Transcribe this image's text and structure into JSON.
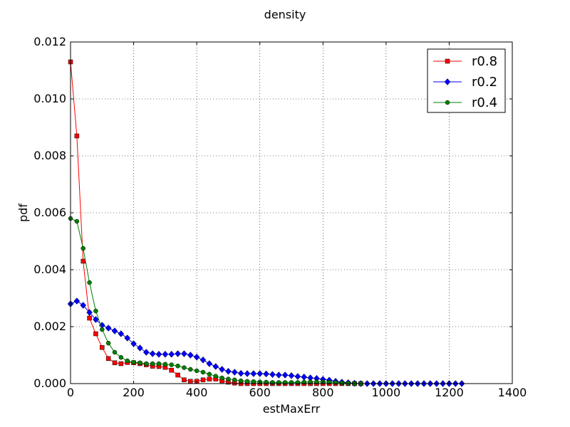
{
  "chart_data": {
    "type": "line",
    "title": "density",
    "xlabel": "estMaxErr",
    "ylabel": "pdf",
    "xlim": [
      0,
      1400
    ],
    "ylim": [
      0,
      0.012
    ],
    "x_ticks": [
      "0",
      "200",
      "400",
      "600",
      "800",
      "1000",
      "1200",
      "1400"
    ],
    "y_ticks": [
      "0.000",
      "0.002",
      "0.004",
      "0.006",
      "0.008",
      "0.010",
      "0.012"
    ],
    "grid": true,
    "legend_position": "top-right",
    "series": [
      {
        "name": "r0.8",
        "color": "#ff0000",
        "marker": "square",
        "points": [
          [
            0,
            0.0113
          ],
          [
            20,
            0.0087
          ],
          [
            40,
            0.0043
          ],
          [
            60,
            0.0023
          ],
          [
            80,
            0.00175
          ],
          [
            100,
            0.00127
          ],
          [
            120,
            0.00088
          ],
          [
            140,
            0.00073
          ],
          [
            160,
            0.0007
          ],
          [
            180,
            0.00074
          ],
          [
            200,
            0.00073
          ],
          [
            220,
            0.0007
          ],
          [
            240,
            0.00066
          ],
          [
            260,
            0.00061
          ],
          [
            280,
            0.0006
          ],
          [
            300,
            0.00057
          ],
          [
            320,
            0.00047
          ],
          [
            340,
            0.0003
          ],
          [
            360,
            0.00013
          ],
          [
            380,
            8e-05
          ],
          [
            400,
            8e-05
          ],
          [
            420,
            0.00013
          ],
          [
            440,
            0.00016
          ],
          [
            460,
            0.00016
          ],
          [
            480,
            0.0001
          ],
          [
            500,
            5e-05
          ],
          [
            520,
            2e-05
          ],
          [
            540,
            0.0
          ],
          [
            560,
            0.0
          ],
          [
            580,
            0.0
          ],
          [
            600,
            0.0
          ],
          [
            620,
            0.0
          ],
          [
            640,
            0.0
          ],
          [
            660,
            0.0
          ],
          [
            680,
            0.0
          ],
          [
            700,
            0.0
          ],
          [
            720,
            0.0
          ],
          [
            740,
            0.0
          ],
          [
            760,
            0.0
          ],
          [
            780,
            0.0
          ],
          [
            800,
            0.0
          ],
          [
            820,
            0.0
          ],
          [
            840,
            0.0
          ],
          [
            860,
            0.0
          ],
          [
            880,
            0.0
          ],
          [
            900,
            0.0
          ],
          [
            920,
            0.0
          ]
        ]
      },
      {
        "name": "r0.2",
        "color": "#0000ff",
        "marker": "diamond",
        "points": [
          [
            0,
            0.0028
          ],
          [
            20,
            0.0029
          ],
          [
            40,
            0.00275
          ],
          [
            60,
            0.0025
          ],
          [
            80,
            0.00225
          ],
          [
            100,
            0.00205
          ],
          [
            120,
            0.00195
          ],
          [
            140,
            0.00185
          ],
          [
            160,
            0.00175
          ],
          [
            180,
            0.0016
          ],
          [
            200,
            0.0014
          ],
          [
            220,
            0.00125
          ],
          [
            240,
            0.0011
          ],
          [
            260,
            0.00105
          ],
          [
            280,
            0.00103
          ],
          [
            300,
            0.00103
          ],
          [
            320,
            0.00103
          ],
          [
            340,
            0.00105
          ],
          [
            360,
            0.00105
          ],
          [
            380,
            0.001
          ],
          [
            400,
            0.00093
          ],
          [
            420,
            0.00083
          ],
          [
            440,
            0.0007
          ],
          [
            460,
            0.0006
          ],
          [
            480,
            0.0005
          ],
          [
            500,
            0.00043
          ],
          [
            520,
            0.0004
          ],
          [
            540,
            0.00036
          ],
          [
            560,
            0.00035
          ],
          [
            580,
            0.00035
          ],
          [
            600,
            0.00035
          ],
          [
            620,
            0.00034
          ],
          [
            640,
            0.00032
          ],
          [
            660,
            0.0003
          ],
          [
            680,
            0.0003
          ],
          [
            700,
            0.00028
          ],
          [
            720,
            0.00025
          ],
          [
            740,
            0.00023
          ],
          [
            760,
            0.0002
          ],
          [
            780,
            0.00018
          ],
          [
            800,
            0.00015
          ],
          [
            820,
            0.00012
          ],
          [
            840,
            8e-05
          ],
          [
            860,
            5e-05
          ],
          [
            880,
            3e-05
          ],
          [
            900,
            1e-05
          ],
          [
            920,
            0.0
          ],
          [
            940,
            0.0
          ],
          [
            960,
            0.0
          ],
          [
            980,
            0.0
          ],
          [
            1000,
            0.0
          ],
          [
            1020,
            0.0
          ],
          [
            1040,
            0.0
          ],
          [
            1060,
            0.0
          ],
          [
            1080,
            0.0
          ],
          [
            1100,
            0.0
          ],
          [
            1120,
            0.0
          ],
          [
            1140,
            0.0
          ],
          [
            1160,
            0.0
          ],
          [
            1180,
            0.0
          ],
          [
            1200,
            0.0
          ],
          [
            1220,
            0.0
          ],
          [
            1240,
            0.0
          ]
        ]
      },
      {
        "name": "r0.4",
        "color": "#008000",
        "marker": "circle",
        "points": [
          [
            0,
            0.0058
          ],
          [
            20,
            0.0057
          ],
          [
            40,
            0.00475
          ],
          [
            60,
            0.00355
          ],
          [
            80,
            0.00255
          ],
          [
            100,
            0.0019
          ],
          [
            120,
            0.00142
          ],
          [
            140,
            0.0011
          ],
          [
            160,
            0.00092
          ],
          [
            180,
            0.0008
          ],
          [
            200,
            0.00075
          ],
          [
            220,
            0.00073
          ],
          [
            240,
            0.0007
          ],
          [
            260,
            0.0007
          ],
          [
            280,
            0.0007
          ],
          [
            300,
            0.00068
          ],
          [
            320,
            0.00066
          ],
          [
            340,
            0.00062
          ],
          [
            360,
            0.00056
          ],
          [
            380,
            0.0005
          ],
          [
            400,
            0.00045
          ],
          [
            420,
            0.0004
          ],
          [
            440,
            0.00033
          ],
          [
            460,
            0.00026
          ],
          [
            480,
            0.0002
          ],
          [
            500,
            0.00016
          ],
          [
            520,
            0.00013
          ],
          [
            540,
            0.0001
          ],
          [
            560,
            8e-05
          ],
          [
            580,
            7e-05
          ],
          [
            600,
            6e-05
          ],
          [
            620,
            5e-05
          ],
          [
            640,
            4e-05
          ],
          [
            660,
            4e-05
          ],
          [
            680,
            4e-05
          ],
          [
            700,
            4e-05
          ],
          [
            720,
            4e-05
          ],
          [
            740,
            5e-05
          ],
          [
            760,
            6e-05
          ],
          [
            780,
            6e-05
          ],
          [
            800,
            6e-05
          ],
          [
            820,
            5e-05
          ],
          [
            840,
            4e-05
          ],
          [
            860,
            2e-05
          ],
          [
            880,
            1e-05
          ],
          [
            900,
            0.0
          ],
          [
            920,
            0.0
          ]
        ]
      }
    ]
  }
}
